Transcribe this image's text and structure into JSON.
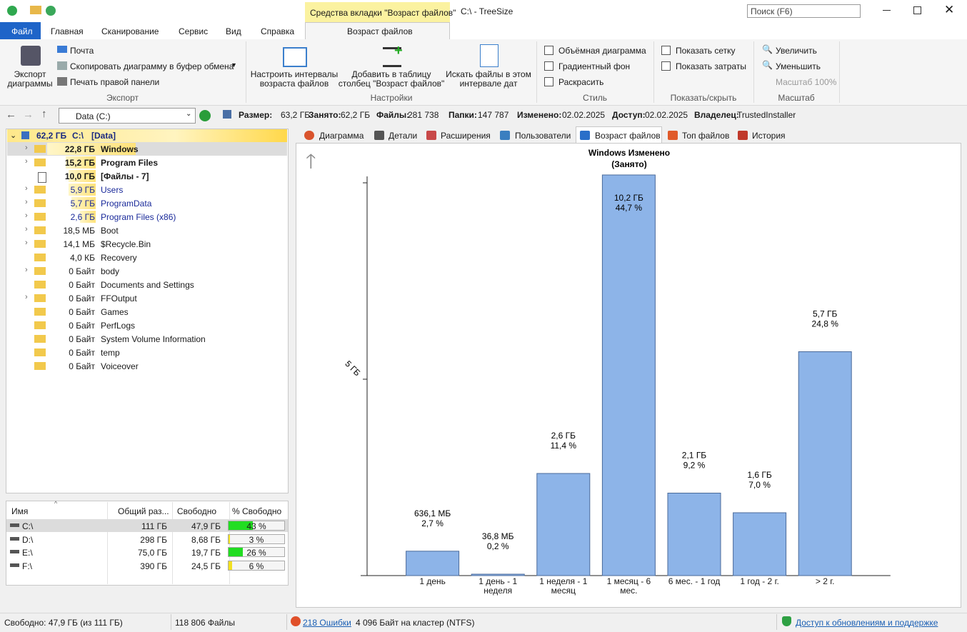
{
  "titlebar": {
    "context_tab": "Средства вкладки \"Возраст файлов\"",
    "title": "C:\\ - TreeSize",
    "search": "Поиск (F6)"
  },
  "ribbon_tabs": [
    "Файл",
    "Главная",
    "Сканирование",
    "Сервис",
    "Вид",
    "Справка",
    "Возраст файлов"
  ],
  "ribbon": {
    "export": {
      "big": "Экспорт диаграммы",
      "items": [
        "Почта",
        "Скопировать диаграмму в буфер обмена",
        "Печать правой панели"
      ],
      "label": "Экспорт"
    },
    "settings": {
      "items": [
        "Настроить интервалы возраста файлов",
        "Добавить в таблицу столбец \"Возраст файлов\"",
        "Искать файлы в этом интервале дат"
      ],
      "label": "Настройки"
    },
    "style": {
      "items": [
        "Объёмная диаграмма",
        "Градиентный фон",
        "Раскрасить"
      ],
      "label": "Стиль"
    },
    "show": {
      "items": [
        "Показать сетку",
        "Показать затраты"
      ],
      "label": "Показать/скрыть"
    },
    "zoom": {
      "items": [
        "Увеличить",
        "Уменьшить",
        "Масштаб 100%"
      ],
      "label": "Масштаб"
    }
  },
  "nav": {
    "drive": "Data (C:)",
    "info": [
      {
        "label": "Размер:",
        "value": "63,2 ГБ"
      },
      {
        "label": "Занято:",
        "value": "62,2 ГБ"
      },
      {
        "label": "Файлы:",
        "value": "281 738"
      },
      {
        "label": "Папки:",
        "value": "147 787"
      },
      {
        "label": "Изменено:",
        "value": "02.02.2025"
      },
      {
        "label": "Доступ:",
        "value": "02.02.2025"
      },
      {
        "label": "Владелец:",
        "value": "TrustedInstaller"
      }
    ]
  },
  "tree": {
    "root": {
      "size": "62,2 ГБ",
      "name": "C:\\",
      "tag": "[Data]"
    },
    "rows": [
      {
        "size": "22,8 ГБ",
        "name": "Windows"
      },
      {
        "size": "15,2 ГБ",
        "name": "Program Files"
      },
      {
        "size": "10,0 ГБ",
        "name": "[Файлы - 7]"
      },
      {
        "size": "5,9 ГБ",
        "name": "Users"
      },
      {
        "size": "5,7 ГБ",
        "name": "ProgramData"
      },
      {
        "size": "2,6 ГБ",
        "name": "Program Files (x86)"
      },
      {
        "size": "18,5 МБ",
        "name": "Boot"
      },
      {
        "size": "14,1 МБ",
        "name": "$Recycle.Bin"
      },
      {
        "size": "4,0 КБ",
        "name": "Recovery"
      },
      {
        "size": "0 Байт",
        "name": "body"
      },
      {
        "size": "0 Байт",
        "name": "Documents and Settings"
      },
      {
        "size": "0 Байт",
        "name": "FFOutput"
      },
      {
        "size": "0 Байт",
        "name": "Games"
      },
      {
        "size": "0 Байт",
        "name": "PerfLogs"
      },
      {
        "size": "0 Байт",
        "name": "System Volume Information"
      },
      {
        "size": "0 Байт",
        "name": "temp"
      },
      {
        "size": "0 Байт",
        "name": "Voiceover"
      }
    ]
  },
  "drives": {
    "headers": [
      "Имя",
      "Общий раз...",
      "Свободно",
      "% Свободно"
    ],
    "rows": [
      {
        "name": "C:\\",
        "total": "111 ГБ",
        "free": "47,9 ГБ",
        "pct": {
          "value": 43,
          "label": "43 %"
        }
      },
      {
        "name": "D:\\",
        "total": "298 ГБ",
        "free": "8,68 ГБ",
        "pct": {
          "value": 3,
          "label": "3 %"
        }
      },
      {
        "name": "E:\\",
        "total": "75,0 ГБ",
        "free": "19,7 ГБ",
        "pct": {
          "value": 26,
          "label": "26 %"
        }
      },
      {
        "name": "F:\\",
        "total": "390 ГБ",
        "free": "24,5 ГБ",
        "pct": {
          "value": 6,
          "label": "6 %"
        }
      }
    ]
  },
  "tabs": [
    "Диаграмма",
    "Детали",
    "Расширения",
    "Пользователи",
    "Возраст файлов",
    "Топ файлов",
    "История"
  ],
  "status": [
    "Свободно: 47,9 ГБ  (из 111 ГБ)",
    "118 806 Файлы",
    "218 Ошибки",
    "4 096 Байт на кластер (NTFS)",
    "Доступ к обновлениям и поддержке"
  ],
  "chart_data": {
    "type": "bar",
    "title": "Windows Изменено",
    "subtitle": "(Занято)",
    "categories": [
      "1 день",
      "1 день - 1 неделя",
      "1 неделя - 1 месяц",
      "1 месяц - 6 мес.",
      "6 мес. - 1 год",
      "1 год - 2 г.",
      "> 2 г."
    ],
    "values": [
      0.6212,
      0.0359,
      2.6,
      10.2,
      2.1,
      1.6,
      5.7
    ],
    "value_labels": [
      "636,1 МБ",
      "36,8 МБ",
      "2,6 ГБ",
      "10,2 ГБ",
      "2,1 ГБ",
      "1,6 ГБ",
      "5,7 ГБ"
    ],
    "percent_labels": [
      "2,7 %",
      "0,2 %",
      "11,4 %",
      "44,7 %",
      "9,2 %",
      "7,0 %",
      "24,8 %"
    ],
    "color": "#8db4e8",
    "ylim": [
      0,
      10.2
    ],
    "yticks": [
      {
        "value": 5,
        "label": "5 ГБ"
      }
    ]
  }
}
